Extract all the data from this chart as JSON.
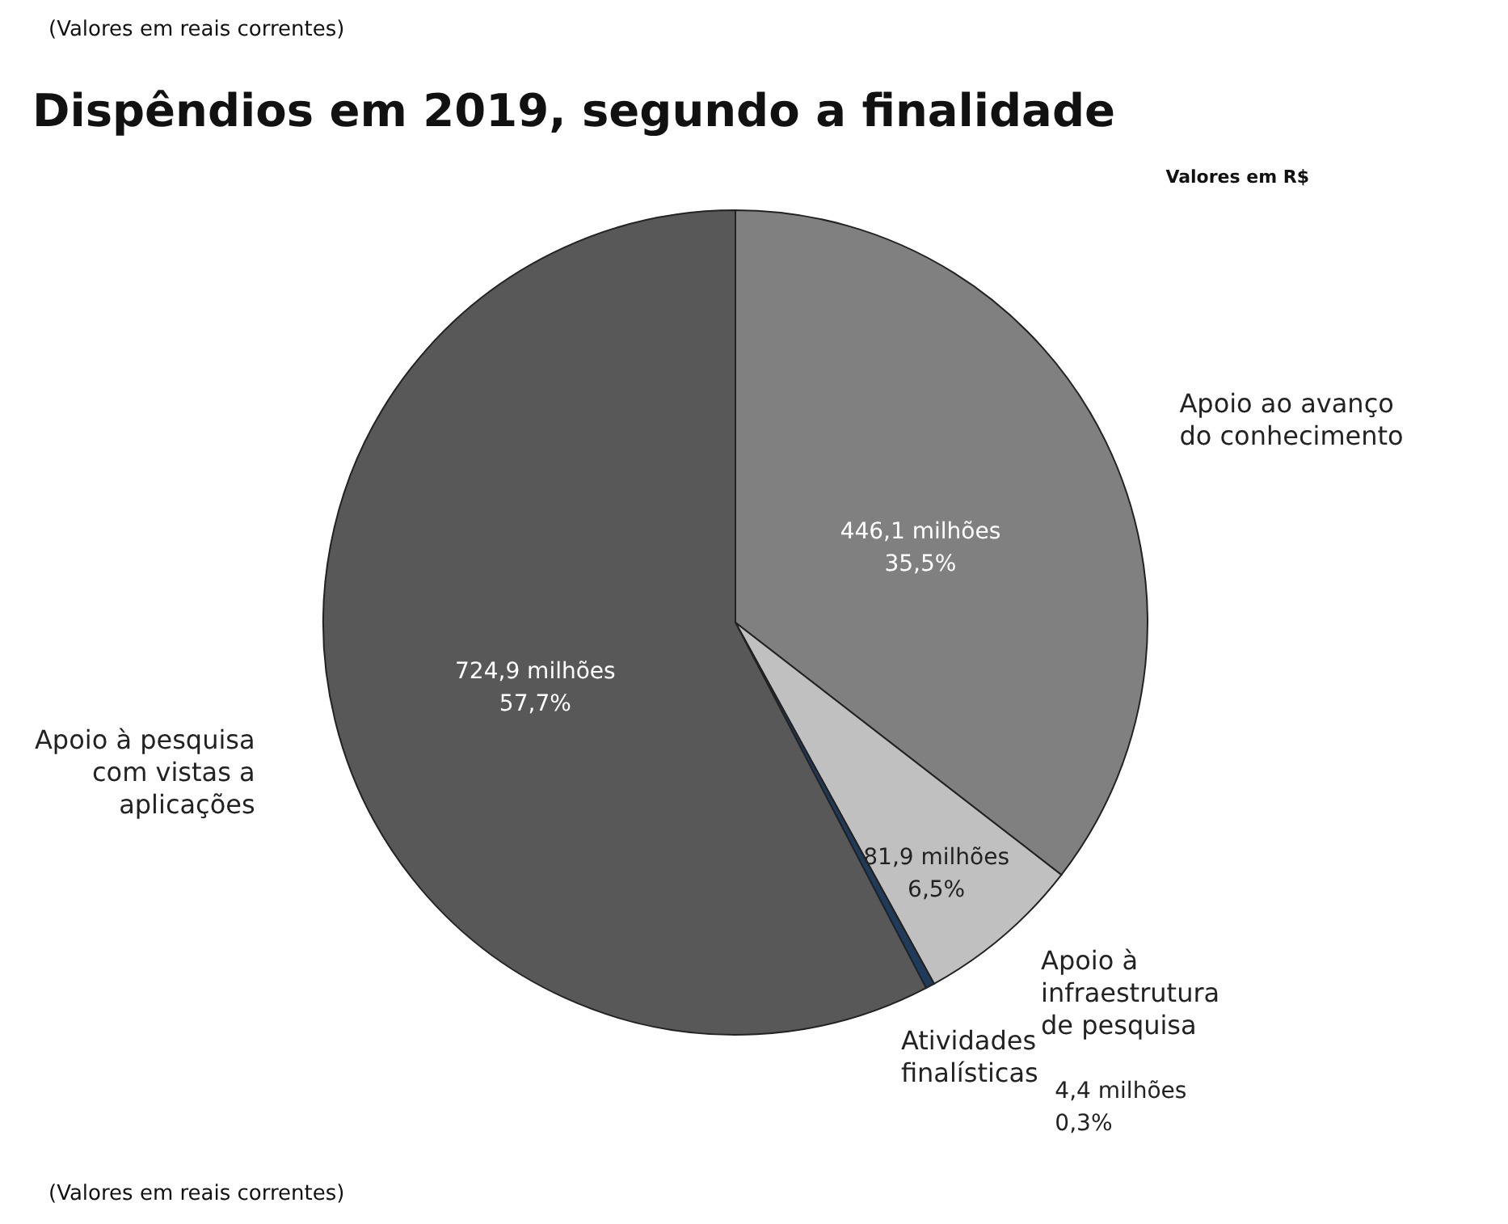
{
  "chart_data": {
    "type": "pie",
    "title": "Dispêndios em 2019, segundo a finalidade",
    "categories": [
      "Apoio ao avanço do conhecimento",
      "Apoio à infraestrutura de pesquisa",
      "Atividades finalísticas",
      "Apoio à pesquisa com vistas a aplicações"
    ],
    "values": [
      446.1,
      81.9,
      4.4,
      724.9
    ],
    "colors": [
      "#808080",
      "#c0c0c0",
      "#1f3b5c",
      "#585858"
    ],
    "value_labels": [
      "446,1 milhões\n\n35,5%",
      "81,9 milhões\n6,5%",
      "4,4 milhões\n0,3%",
      "724,9 milhões\n\n57,7%"
    ],
    "annotations": [
      "(Valores em reais correntes)",
      "Valores em R$",
      "(Valores em reais correntes)"
    ]
  }
}
